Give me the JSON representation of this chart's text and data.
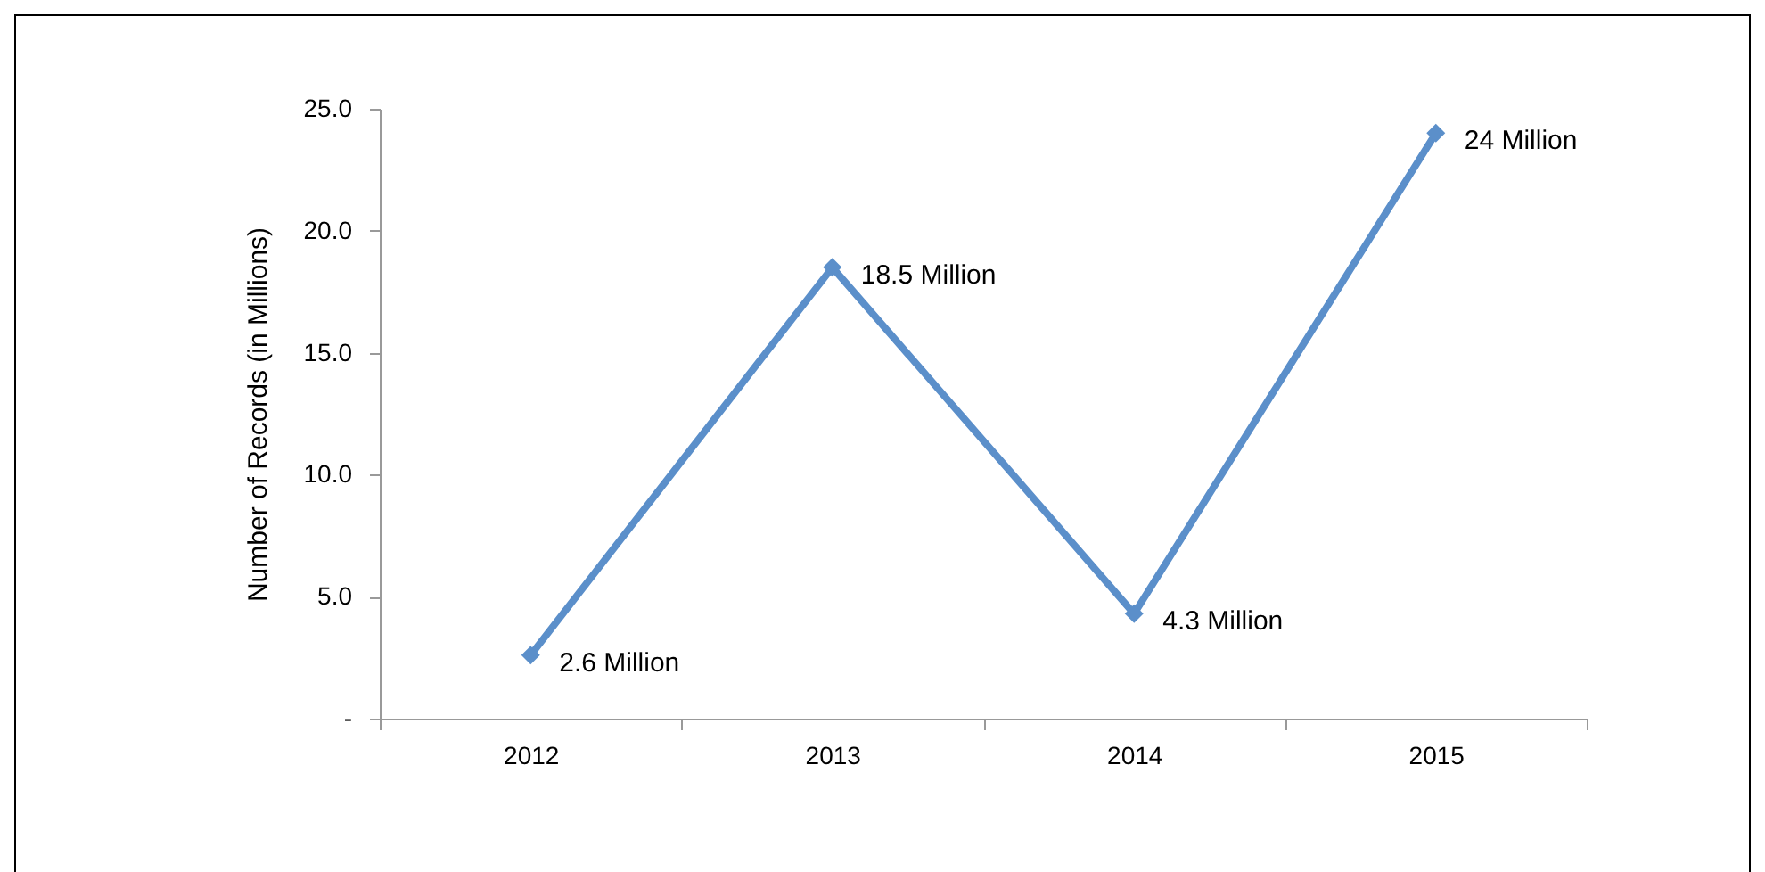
{
  "chart_data": {
    "type": "line",
    "ylabel": "Number of Records (in Millions)",
    "categories": [
      "2012",
      "2013",
      "2014",
      "2015"
    ],
    "series": [
      {
        "color": "#5b8fca",
        "values": [
          2.6,
          18.5,
          4.3,
          24
        ],
        "value_labels": [
          "2.6 Million",
          "18.5 Million",
          "4.3 Million",
          "24 Million"
        ]
      }
    ],
    "ylim": [
      0,
      25
    ],
    "yticks": [
      {
        "value": 0,
        "label": "-"
      },
      {
        "value": 5,
        "label": "5.0"
      },
      {
        "value": 10,
        "label": "10.0"
      },
      {
        "value": 15,
        "label": "15.0"
      },
      {
        "value": 20,
        "label": "20.0"
      },
      {
        "value": 25,
        "label": "25.0"
      }
    ],
    "grid": false,
    "marker": "diamond",
    "line_style": "solid"
  }
}
